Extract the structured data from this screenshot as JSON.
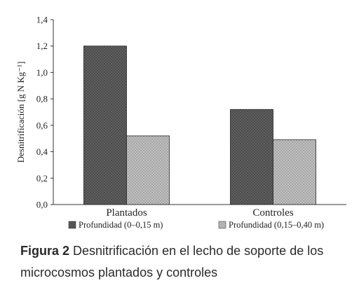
{
  "chart_data": {
    "type": "bar",
    "categories": [
      "Plantados",
      "Controles"
    ],
    "series": [
      {
        "name": "Profundidad (0–0,15 m)",
        "values": [
          1.2,
          0.72
        ],
        "color": "#555555"
      },
      {
        "name": "Profundidad (0,15–0,40 m)",
        "values": [
          0.52,
          0.49
        ],
        "color": "#9a9a9a"
      }
    ],
    "title": "",
    "xlabel": "",
    "ylabel": "Desnitrificación [g N Kg⁻¹]",
    "ylim": [
      0,
      1.4
    ],
    "yticks": [
      0,
      0.2,
      0.4,
      0.6,
      0.8,
      1.0,
      1.2,
      1.4
    ],
    "ytick_labels": [
      "0,0",
      "0,2",
      "0,4",
      "0,6",
      "0,8",
      "1,0",
      "1,2",
      "1,4"
    ],
    "grid": false,
    "legend_position": "bottom"
  },
  "caption": {
    "label": "Figura 2",
    "text": " Desnitrificación en el lecho de soporte de los microcosmos plantados y controles"
  }
}
